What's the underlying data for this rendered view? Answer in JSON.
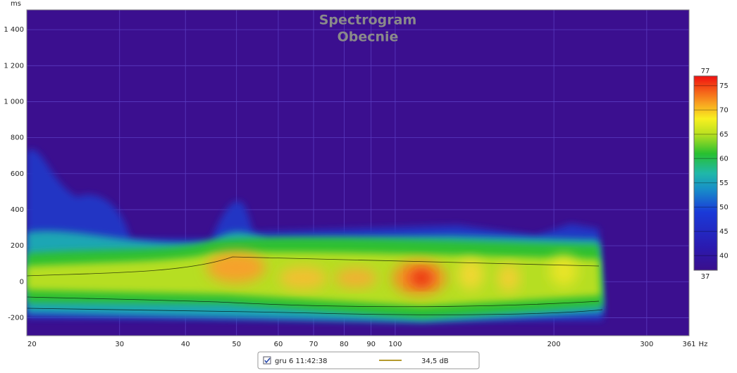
{
  "chart_data": {
    "type": "spectrogram",
    "title": "Spectrogram",
    "subtitle": "Obecnie",
    "y_label": "ms",
    "x_unit": "Hz",
    "log_x": true,
    "grid": true,
    "xlim": [
      20,
      361
    ],
    "ylim": [
      -300,
      1510
    ],
    "xticks": [
      20,
      30,
      40,
      50,
      60,
      70,
      80,
      90,
      100,
      200,
      300,
      361
    ],
    "yticks": [
      -200,
      0,
      200,
      400,
      600,
      800,
      {
        "value": 1000,
        "label": "1 000"
      },
      {
        "value": 1200,
        "label": "1 200"
      },
      {
        "value": 1400,
        "label": "1 400"
      }
    ],
    "colorbar": {
      "lim": [
        37,
        77
      ],
      "ticks": [
        40,
        45,
        50,
        55,
        60,
        65,
        70,
        75
      ]
    },
    "series": [
      {
        "name": "gru 6 11:42:38",
        "color": "#b59a2e",
        "label": "34,5 dB"
      }
    ]
  }
}
